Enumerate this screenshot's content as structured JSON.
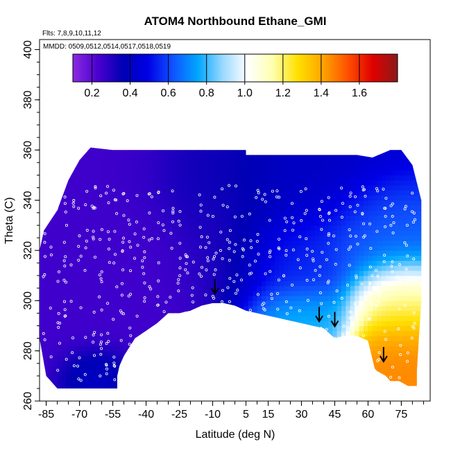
{
  "chart_data": {
    "type": "heatmap",
    "title": "ATOM4 Northbound Ethane_GMI",
    "annotations": {
      "flights": "Flts: 7,8,9,10,11,12",
      "dates": "MMDD: 0509,0512,0514,0517,0518,0519"
    },
    "xlabel": "Latitude (deg N)",
    "ylabel": "Theta (C)",
    "xlim": [
      -88,
      88
    ],
    "ylim": [
      260,
      404
    ],
    "x_ticks": [
      -85,
      -70,
      -55,
      -40,
      -25,
      -10,
      5,
      15,
      30,
      45,
      60,
      75
    ],
    "x_tick_labels": [
      "-85",
      "-70",
      "-55",
      "-40",
      "-25",
      "-10",
      "5",
      "15",
      "30",
      "45",
      "60",
      "75"
    ],
    "y_ticks": [
      260,
      280,
      300,
      320,
      340,
      360,
      380,
      400
    ],
    "y_tick_labels": [
      "260",
      "280",
      "300",
      "320",
      "340",
      "360",
      "380",
      "400"
    ],
    "colorbar": {
      "range": [
        0.1,
        1.8
      ],
      "ticks": [
        0.2,
        0.4,
        0.6,
        0.8,
        1.0,
        1.2,
        1.4,
        1.6
      ],
      "tick_labels": [
        "0.2",
        "0.4",
        "0.6",
        "0.8",
        "1.0",
        "1.2",
        "1.4",
        "1.6"
      ],
      "colors": [
        "#8a2be2",
        "#4b00d0",
        "#0000b4",
        "#0000e6",
        "#0f52ff",
        "#00a6ff",
        "#9ad9ff",
        "#ffffff",
        "#ffffb0",
        "#ffe000",
        "#ffa500",
        "#ff5000",
        "#e00000",
        "#8b1a1a"
      ]
    },
    "boundary": {
      "upper": [
        [
          -88,
          320
        ],
        [
          -86,
          328
        ],
        [
          -80,
          336
        ],
        [
          -75,
          348
        ],
        [
          -70,
          356
        ],
        [
          -65,
          361
        ],
        [
          -55,
          360
        ],
        [
          -40,
          360
        ],
        [
          -25,
          360
        ],
        [
          -10,
          360
        ],
        [
          0,
          360
        ],
        [
          5,
          360
        ],
        [
          5,
          358
        ],
        [
          15,
          358
        ],
        [
          25,
          358
        ],
        [
          35,
          358
        ],
        [
          45,
          358
        ],
        [
          55,
          358
        ],
        [
          62,
          357
        ],
        [
          70,
          360
        ],
        [
          75,
          360
        ],
        [
          80,
          354
        ],
        [
          84,
          340
        ],
        [
          84,
          300
        ],
        [
          82,
          272
        ]
      ],
      "lower": [
        [
          82,
          266
        ],
        [
          78,
          266
        ],
        [
          74,
          268
        ],
        [
          70,
          268
        ],
        [
          68,
          270
        ],
        [
          64,
          272
        ],
        [
          63,
          273
        ],
        [
          60,
          284
        ],
        [
          55,
          286
        ],
        [
          50,
          286
        ],
        [
          45,
          285
        ],
        [
          40,
          289
        ],
        [
          35,
          290
        ],
        [
          25,
          292
        ],
        [
          15,
          294
        ],
        [
          5,
          296
        ],
        [
          0,
          298
        ],
        [
          -5,
          299
        ],
        [
          -10,
          299
        ],
        [
          -15,
          298
        ],
        [
          -20,
          296
        ],
        [
          -25,
          295
        ],
        [
          -30,
          295
        ],
        [
          -35,
          291
        ],
        [
          -40,
          288
        ],
        [
          -45,
          285
        ],
        [
          -50,
          278
        ],
        [
          -52,
          274
        ],
        [
          -53,
          270
        ],
        [
          -53,
          265
        ],
        [
          -60,
          265
        ],
        [
          -70,
          265
        ],
        [
          -80,
          265
        ],
        [
          -85,
          270
        ],
        [
          -88,
          285
        ]
      ]
    },
    "field": [
      {
        "region": "southern",
        "lat": [
          -88,
          -20
        ],
        "theta": [
          265,
          360
        ],
        "value": 0.25
      },
      {
        "region": "tropics",
        "lat": [
          -20,
          10
        ],
        "theta": [
          298,
          360
        ],
        "value": 0.3
      },
      {
        "region": "upper-mid",
        "lat": [
          -20,
          60
        ],
        "theta": [
          330,
          360
        ],
        "value": 0.4
      },
      {
        "region": "lower-south",
        "lat": [
          -70,
          -53
        ],
        "theta": [
          265,
          275
        ],
        "value": 0.45
      },
      {
        "region": "mid-tropo",
        "lat": [
          5,
          45
        ],
        "theta": [
          300,
          330
        ],
        "value": 0.55
      },
      {
        "region": "low-north",
        "lat": [
          10,
          45
        ],
        "theta": [
          286,
          300
        ],
        "value": 0.8
      },
      {
        "region": "subpolar-hi",
        "lat": [
          45,
          84
        ],
        "theta": [
          310,
          340
        ],
        "value": 0.65
      },
      {
        "region": "arctic-mid",
        "lat": [
          60,
          84
        ],
        "theta": [
          290,
          310
        ],
        "value": 1.2
      },
      {
        "region": "arctic-low",
        "lat": [
          60,
          84
        ],
        "theta": [
          266,
          290
        ],
        "value": 1.45
      }
    ],
    "arrows": [
      {
        "lat": -9,
        "theta": 303
      },
      {
        "lat": 38,
        "theta": 292
      },
      {
        "lat": 45,
        "theta": 290
      },
      {
        "lat": 67,
        "theta": 276
      }
    ]
  }
}
